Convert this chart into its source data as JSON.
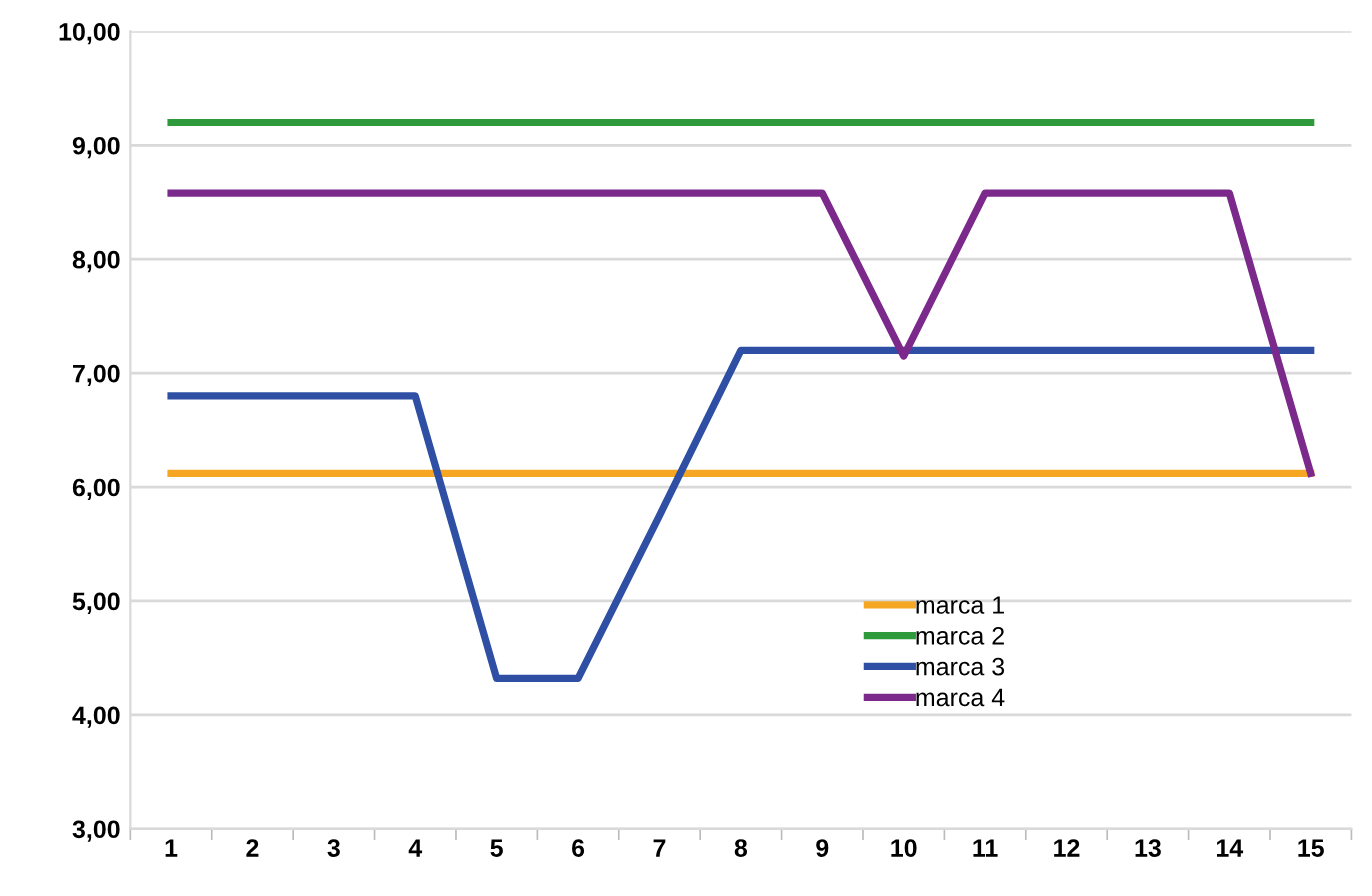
{
  "chart_data": {
    "type": "line",
    "categories": [
      "1",
      "2",
      "3",
      "4",
      "5",
      "6",
      "7",
      "8",
      "9",
      "10",
      "11",
      "12",
      "13",
      "14",
      "15"
    ],
    "series": [
      {
        "name": "marca 1",
        "color": "#f5a623",
        "values": [
          6.12,
          6.12,
          6.12,
          6.12,
          6.12,
          6.12,
          6.12,
          6.12,
          6.12,
          6.12,
          6.12,
          6.12,
          6.12,
          6.12,
          6.12
        ]
      },
      {
        "name": "marca 2",
        "color": "#2e9a3c",
        "values": [
          9.2,
          9.2,
          9.2,
          9.2,
          9.2,
          9.2,
          9.2,
          9.2,
          9.2,
          9.2,
          9.2,
          9.2,
          9.2,
          9.2,
          9.2
        ]
      },
      {
        "name": "marca 3",
        "color": "#2e4fa3",
        "values": [
          6.8,
          6.8,
          6.8,
          6.8,
          4.32,
          4.32,
          5.75,
          7.2,
          7.2,
          7.2,
          7.2,
          7.2,
          7.2,
          7.2,
          7.2
        ]
      },
      {
        "name": "marca 4",
        "color": "#7b2a8c",
        "values": [
          8.58,
          8.58,
          8.58,
          8.58,
          8.58,
          8.58,
          8.58,
          8.58,
          8.58,
          7.15,
          8.58,
          8.58,
          8.58,
          8.58,
          6.12
        ]
      }
    ],
    "ylim": [
      3,
      10
    ],
    "yticks": [
      {
        "value": 3,
        "label": "3,00"
      },
      {
        "value": 4,
        "label": "4,00"
      },
      {
        "value": 5,
        "label": "5,00"
      },
      {
        "value": 6,
        "label": "6,00"
      },
      {
        "value": 7,
        "label": "7,00"
      },
      {
        "value": 8,
        "label": "8,00"
      },
      {
        "value": 9,
        "label": "9,00"
      },
      {
        "value": 10,
        "label": "10,00"
      }
    ],
    "grid": "y",
    "legend": "bottom right",
    "marker": "none",
    "line_style": "solid"
  }
}
